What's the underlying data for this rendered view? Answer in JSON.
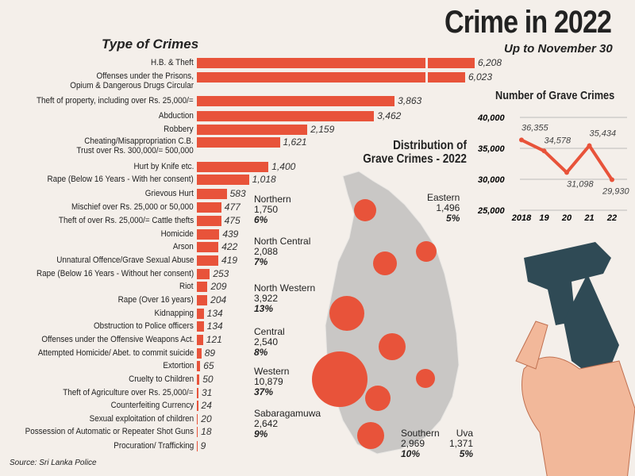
{
  "title": "Crime in 2022",
  "subtitle": "Up to November 30",
  "source": "Source: Sri Lanka Police",
  "chart_data": [
    {
      "type": "bar",
      "orientation": "horizontal",
      "title": "Type of Crimes",
      "color": "#e8533a",
      "axis_break_on": [
        "H.B. & Theft",
        "Offenses under the Prisons, Opium & Dangerous Drugs Circular"
      ],
      "categories": [
        "H.B. & Theft",
        "Offenses under the Prisons,\nOpium & Dangerous Drugs Circular",
        "Theft of property, including over Rs. 25,000/=",
        "Abduction",
        "Robbery",
        "Cheating/Misappropriation C.B.\nTrust over Rs. 300,000/= 500,000",
        "Hurt by Knife etc.",
        "Rape (Below 16 Years - With her consent)",
        "Grievous Hurt",
        "Mischief over Rs. 25,000 or 50,000",
        "Theft of over Rs. 25,000/= Cattle thefts",
        "Homicide",
        "Arson",
        "Unnatural Offence/Grave Sexual Abuse",
        "Rape (Below 16 Years - Without her consent)",
        "Riot",
        "Rape (Over 16 years)",
        "Kidnapping",
        "Obstruction to Police officers",
        "Offenses under the Offensive Weapons Act.",
        "Attempted Homicide/ Abet. to commit suicide",
        "Extortion",
        "Cruelty to Children",
        "Theft of Agriculture over Rs. 25,000/=",
        "Counterfeiting Currency",
        "Sexual exploitation of children",
        "Possession of Automatic or Repeater Shot Guns",
        "Procuration/ Trafficking"
      ],
      "values": [
        6208,
        6023,
        3863,
        3462,
        2159,
        1621,
        1400,
        1018,
        583,
        477,
        475,
        439,
        422,
        419,
        253,
        209,
        204,
        134,
        134,
        121,
        89,
        65,
        50,
        31,
        24,
        20,
        18,
        9
      ],
      "labels": [
        "6,208",
        "6,023",
        "3,863",
        "3,462",
        "2,159",
        "1,621",
        "1,400",
        "1,018",
        "583",
        "477",
        "475",
        "439",
        "422",
        "419",
        "253",
        "209",
        "204",
        "134",
        "134",
        "121",
        "89",
        "65",
        "50",
        "31",
        "24",
        "20",
        "18",
        "9"
      ]
    },
    {
      "type": "line",
      "title": "Number of Grave Crimes",
      "color": "#e8533a",
      "x": [
        "2018",
        "19",
        "20",
        "21",
        "22"
      ],
      "values": [
        36355,
        34578,
        31098,
        35434,
        29930
      ],
      "labels": [
        "36,355",
        "34,578",
        "31,098",
        "35,434",
        "29,930"
      ],
      "ylim": [
        25000,
        40000
      ],
      "yticks": [
        "40,000",
        "35,000",
        "30,000",
        "25,000"
      ],
      "grid": true
    },
    {
      "type": "bubble-map",
      "title": "Distribution of\nGrave Crimes - 2022",
      "regions": [
        {
          "name": "Northern",
          "value": "1,750",
          "pct": "6%"
        },
        {
          "name": "Eastern",
          "value": "1,496",
          "pct": "5%"
        },
        {
          "name": "North Central",
          "value": "2,088",
          "pct": "7%"
        },
        {
          "name": "North Western",
          "value": "3,922",
          "pct": "13%"
        },
        {
          "name": "Central",
          "value": "2,540",
          "pct": "8%"
        },
        {
          "name": "Western",
          "value": "10,879",
          "pct": "37%"
        },
        {
          "name": "Sabaragamuwa",
          "value": "2,642",
          "pct": "9%"
        },
        {
          "name": "Southern",
          "value": "2,969",
          "pct": "10%"
        },
        {
          "name": "Uva",
          "value": "1,371",
          "pct": "5%"
        }
      ]
    }
  ]
}
